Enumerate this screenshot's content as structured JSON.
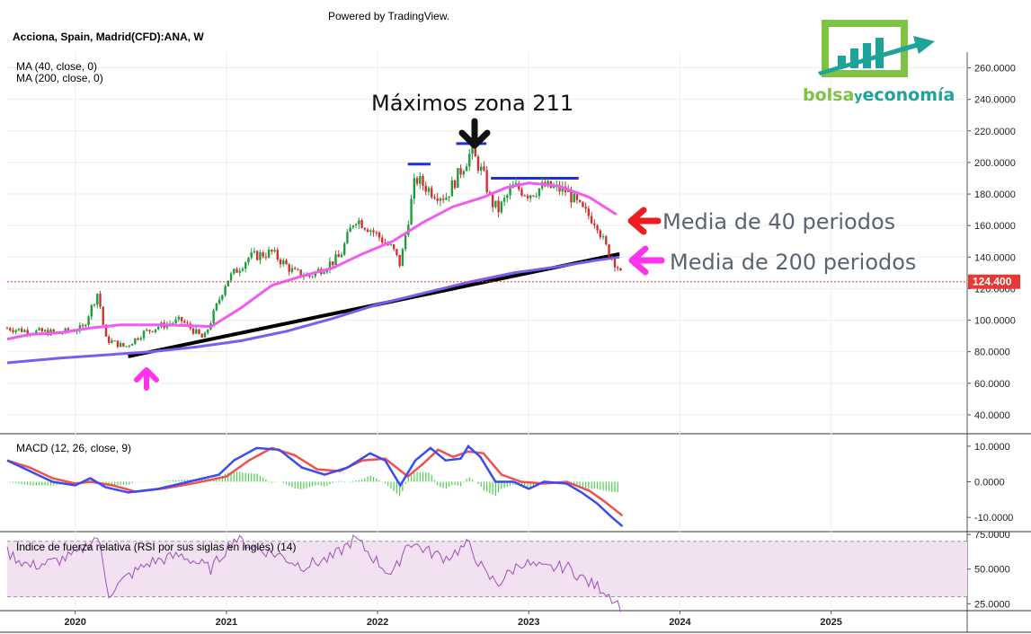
{
  "header": {
    "powered_by": "Powered by TradingView.",
    "symbol_title": "Acciona, Spain, Madrid(CFD):ANA, W",
    "ma_legend_1": "MA (40, close, 0)",
    "ma_legend_2": "MA (200, close, 0)"
  },
  "logo": {
    "text_1": "bolsa",
    "text_y": "y",
    "text_2": "economía"
  },
  "annotations": {
    "top_label": "Máximos zona 211",
    "ma40_label": "Media de 40 periodos",
    "ma200_label": "Media de 200 periodos"
  },
  "colors": {
    "candle_up": "#1e9e3a",
    "candle_down": "#d32f2f",
    "ma40": "#f05cf0",
    "ma200": "#7b5cf0",
    "macd_line": "#3a4cf0",
    "signal_line": "#f05050",
    "histogram": "#4ccf4c",
    "rsi_line": "#a050b8",
    "rsi_band": "#f1e1f1",
    "price_badge": "#e53935",
    "resistance": "#1e2ee0",
    "trendline": "#000000"
  },
  "chart_data": [
    {
      "type": "candlestick",
      "title": "Acciona, Spain, Madrid(CFD):ANA, W",
      "ylim": [
        28000,
        270000
      ],
      "y_ticks": [
        {
          "value": 40000,
          "label": "40.0000"
        },
        {
          "value": 60000,
          "label": "60.0000"
        },
        {
          "value": 80000,
          "label": "80.0000"
        },
        {
          "value": 100000,
          "label": "100.0000"
        },
        {
          "value": 120000,
          "label": "120.0000"
        },
        {
          "value": 140000,
          "label": "140.0000"
        },
        {
          "value": 160000,
          "label": "160.0000"
        },
        {
          "value": 180000,
          "label": "180.0000"
        },
        {
          "value": 200000,
          "label": "200.0000"
        },
        {
          "value": 220000,
          "label": "220.0000"
        },
        {
          "value": 240000,
          "label": "240.0000"
        },
        {
          "value": 260000,
          "label": "260.0000"
        }
      ],
      "last_price": {
        "value": 124400,
        "label": "124.400"
      },
      "x_axis": {
        "range": [
          2019.55,
          2025.9
        ],
        "ticks": [
          {
            "value": 2020.0,
            "label": "2020"
          },
          {
            "value": 2021.0,
            "label": "2021"
          },
          {
            "value": 2022.0,
            "label": "2022"
          },
          {
            "value": 2023.0,
            "label": "2023"
          },
          {
            "value": 2024.0,
            "label": "2024"
          },
          {
            "value": 2025.0,
            "label": "2025"
          }
        ]
      },
      "price_anchors": [
        [
          2019.55,
          95000
        ],
        [
          2019.7,
          93000
        ],
        [
          2019.9,
          92000
        ],
        [
          2020.05,
          95000
        ],
        [
          2020.15,
          118000
        ],
        [
          2020.2,
          88000
        ],
        [
          2020.33,
          83000
        ],
        [
          2020.45,
          92000
        ],
        [
          2020.55,
          96000
        ],
        [
          2020.7,
          100000
        ],
        [
          2020.85,
          88000
        ],
        [
          2021.0,
          125000
        ],
        [
          2021.15,
          140000
        ],
        [
          2021.3,
          143000
        ],
        [
          2021.45,
          130000
        ],
        [
          2021.55,
          128000
        ],
        [
          2021.75,
          140000
        ],
        [
          2021.85,
          165000
        ],
        [
          2021.95,
          158000
        ],
        [
          2022.1,
          145000
        ],
        [
          2022.15,
          135000
        ],
        [
          2022.25,
          190000
        ],
        [
          2022.35,
          182000
        ],
        [
          2022.45,
          178000
        ],
        [
          2022.55,
          195000
        ],
        [
          2022.62,
          207000
        ],
        [
          2022.7,
          192000
        ],
        [
          2022.75,
          175000
        ],
        [
          2022.8,
          170000
        ],
        [
          2022.9,
          185000
        ],
        [
          2023.0,
          180000
        ],
        [
          2023.1,
          185000
        ],
        [
          2023.25,
          182000
        ],
        [
          2023.35,
          170000
        ],
        [
          2023.45,
          162000
        ],
        [
          2023.5,
          148000
        ],
        [
          2023.55,
          140000
        ],
        [
          2023.6,
          132000
        ],
        [
          2023.62,
          124400
        ]
      ],
      "series": [
        {
          "name": "MA (40, close, 0)",
          "points": [
            [
              2019.55,
              88000
            ],
            [
              2019.7,
              91000
            ],
            [
              2019.9,
              92000
            ],
            [
              2020.1,
              95000
            ],
            [
              2020.3,
              97000
            ],
            [
              2020.6,
              97000
            ],
            [
              2020.9,
              96000
            ],
            [
              2021.1,
              108000
            ],
            [
              2021.3,
              122000
            ],
            [
              2021.5,
              128000
            ],
            [
              2021.7,
              133000
            ],
            [
              2021.9,
              142000
            ],
            [
              2022.1,
              150000
            ],
            [
              2022.3,
              162000
            ],
            [
              2022.5,
              172000
            ],
            [
              2022.7,
              178000
            ],
            [
              2022.85,
              184000
            ],
            [
              2023.0,
              187000
            ],
            [
              2023.2,
              185000
            ],
            [
              2023.4,
              178000
            ],
            [
              2023.58,
              167000
            ]
          ]
        },
        {
          "name": "MA (200, close, 0)",
          "points": [
            [
              2019.55,
              73000
            ],
            [
              2019.9,
              76000
            ],
            [
              2020.2,
              78000
            ],
            [
              2020.5,
              80000
            ],
            [
              2020.8,
              83000
            ],
            [
              2021.1,
              87000
            ],
            [
              2021.4,
              93000
            ],
            [
              2021.7,
              101000
            ],
            [
              2022.0,
              110000
            ],
            [
              2022.3,
              117000
            ],
            [
              2022.6,
              124000
            ],
            [
              2022.9,
              130000
            ],
            [
              2023.2,
              134000
            ],
            [
              2023.45,
              138000
            ],
            [
              2023.6,
              140000
            ]
          ]
        }
      ],
      "trendline": [
        [
          2020.35,
          77000
        ],
        [
          2023.6,
          142000
        ]
      ],
      "resistance_lines": [
        {
          "x": [
            2022.2,
            2022.35
          ],
          "y": 199000
        },
        {
          "x": [
            2022.52,
            2022.72
          ],
          "y": 212000
        },
        {
          "x": [
            2022.75,
            2023.33
          ],
          "y": 190000
        }
      ]
    },
    {
      "type": "macd",
      "title": "MACD (12, 26, close, 9)",
      "ylim": [
        -14000,
        13500
      ],
      "y_ticks": [
        {
          "value": 10000,
          "label": "10.0000"
        },
        {
          "value": 0,
          "label": "0.0000"
        },
        {
          "value": -10000,
          "label": "-10.0000"
        }
      ],
      "series": [
        {
          "name": "MACD",
          "points": [
            [
              2019.55,
              6000
            ],
            [
              2019.7,
              3000
            ],
            [
              2019.85,
              0
            ],
            [
              2020.0,
              -1000
            ],
            [
              2020.1,
              1000
            ],
            [
              2020.2,
              -1500
            ],
            [
              2020.35,
              -3000
            ],
            [
              2020.55,
              -2000
            ],
            [
              2020.75,
              0
            ],
            [
              2020.95,
              2000
            ],
            [
              2021.05,
              6000
            ],
            [
              2021.2,
              9500
            ],
            [
              2021.35,
              9000
            ],
            [
              2021.5,
              4000
            ],
            [
              2021.65,
              2000
            ],
            [
              2021.8,
              4000
            ],
            [
              2021.95,
              8000
            ],
            [
              2022.05,
              6000
            ],
            [
              2022.15,
              -1000
            ],
            [
              2022.25,
              6000
            ],
            [
              2022.35,
              9500
            ],
            [
              2022.45,
              6000
            ],
            [
              2022.55,
              6500
            ],
            [
              2022.6,
              10000
            ],
            [
              2022.68,
              7000
            ],
            [
              2022.78,
              0
            ],
            [
              2022.9,
              0
            ],
            [
              2023.0,
              -2000
            ],
            [
              2023.1,
              0
            ],
            [
              2023.25,
              -500
            ],
            [
              2023.35,
              -3000
            ],
            [
              2023.45,
              -6000
            ],
            [
              2023.55,
              -10000
            ],
            [
              2023.62,
              -12500
            ]
          ]
        },
        {
          "name": "Signal",
          "points": [
            [
              2019.55,
              6000
            ],
            [
              2019.7,
              4000
            ],
            [
              2019.85,
              1000
            ],
            [
              2020.0,
              -500
            ],
            [
              2020.1,
              0
            ],
            [
              2020.25,
              -1000
            ],
            [
              2020.4,
              -2800
            ],
            [
              2020.6,
              -1800
            ],
            [
              2020.8,
              -300
            ],
            [
              2021.0,
              1500
            ],
            [
              2021.15,
              6000
            ],
            [
              2021.3,
              9500
            ],
            [
              2021.45,
              7500
            ],
            [
              2021.6,
              3500
            ],
            [
              2021.75,
              3000
            ],
            [
              2021.9,
              6000
            ],
            [
              2022.05,
              6500
            ],
            [
              2022.2,
              1500
            ],
            [
              2022.3,
              5000
            ],
            [
              2022.4,
              9000
            ],
            [
              2022.5,
              7000
            ],
            [
              2022.6,
              8500
            ],
            [
              2022.7,
              8000
            ],
            [
              2022.82,
              2000
            ],
            [
              2022.95,
              0
            ],
            [
              2023.1,
              -500
            ],
            [
              2023.25,
              0
            ],
            [
              2023.4,
              -2500
            ],
            [
              2023.5,
              -5500
            ],
            [
              2023.62,
              -9500
            ]
          ]
        }
      ],
      "histogram_window": [
        2019.55,
        2023.6
      ]
    },
    {
      "type": "line",
      "title": "Índice de fuerza relativa (RSI por sus siglas en inglés) (14)",
      "ylim": [
        20000,
        77000
      ],
      "y_ticks": [
        {
          "value": 75000,
          "label": "75.0000"
        },
        {
          "value": 50000,
          "label": "50.0000"
        },
        {
          "value": 25000,
          "label": "25.0000"
        }
      ],
      "band": [
        30000,
        70000
      ],
      "anchors": [
        [
          2019.55,
          62000
        ],
        [
          2019.7,
          52000
        ],
        [
          2019.85,
          55000
        ],
        [
          2020.0,
          60000
        ],
        [
          2020.15,
          74000
        ],
        [
          2020.22,
          32000
        ],
        [
          2020.35,
          45000
        ],
        [
          2020.5,
          55000
        ],
        [
          2020.7,
          60000
        ],
        [
          2020.9,
          50000
        ],
        [
          2021.05,
          72000
        ],
        [
          2021.2,
          65000
        ],
        [
          2021.35,
          60000
        ],
        [
          2021.5,
          52000
        ],
        [
          2021.7,
          58000
        ],
        [
          2021.85,
          72000
        ],
        [
          2022.0,
          55000
        ],
        [
          2022.1,
          45000
        ],
        [
          2022.2,
          70000
        ],
        [
          2022.35,
          62000
        ],
        [
          2022.45,
          58000
        ],
        [
          2022.6,
          68000
        ],
        [
          2022.72,
          45000
        ],
        [
          2022.8,
          40000
        ],
        [
          2022.95,
          55000
        ],
        [
          2023.1,
          50000
        ],
        [
          2023.25,
          52000
        ],
        [
          2023.4,
          40000
        ],
        [
          2023.5,
          35000
        ],
        [
          2023.62,
          22000
        ]
      ]
    }
  ]
}
